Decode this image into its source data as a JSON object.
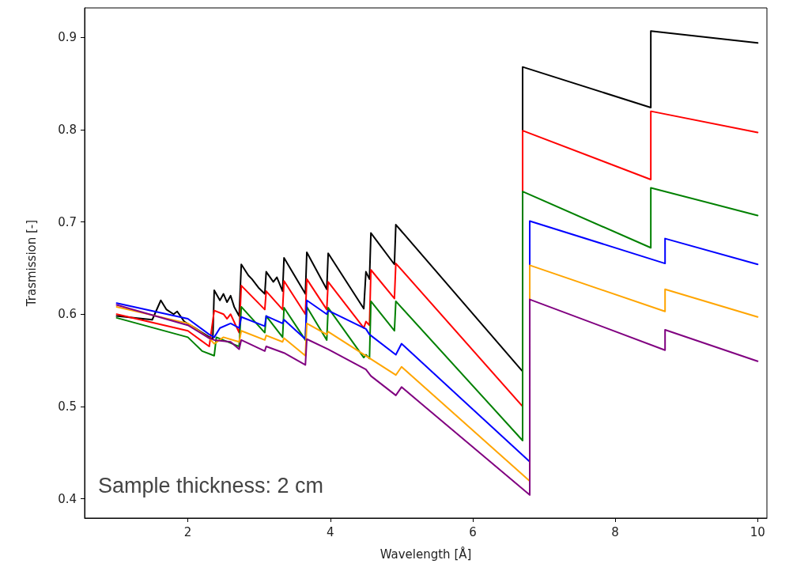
{
  "chart_data": {
    "type": "line",
    "xlabel": "Wavelength [Å]",
    "ylabel": "Trasmission [-]",
    "annotations": [
      "Sample thickness: 2 cm"
    ],
    "xlim": [
      0.55,
      10.13
    ],
    "ylim": [
      0.379,
      0.932
    ],
    "xticks": [
      2,
      4,
      6,
      8,
      10
    ],
    "yticks": [
      0.4,
      0.5,
      0.6,
      0.7,
      0.8,
      0.9
    ],
    "grid": false,
    "marker": "none",
    "line_style": "solid",
    "series": [
      {
        "color": "#000000",
        "x": [
          1,
          1.5,
          1.62,
          1.7,
          1.8,
          1.85,
          1.95,
          2.1,
          2.35,
          2.37,
          2.45,
          2.5,
          2.55,
          2.6,
          2.65,
          2.72,
          2.75,
          2.85,
          2.9,
          3.0,
          3.08,
          3.1,
          3.2,
          3.25,
          3.33,
          3.35,
          3.65,
          3.67,
          3.95,
          3.97,
          4.47,
          4.5,
          4.55,
          4.57,
          4.9,
          4.92,
          6.7,
          6.7,
          8.5,
          8.5,
          10
        ],
        "values": [
          0.598,
          0.594,
          0.615,
          0.605,
          0.6,
          0.603,
          0.592,
          0.585,
          0.573,
          0.626,
          0.615,
          0.622,
          0.613,
          0.62,
          0.608,
          0.598,
          0.654,
          0.642,
          0.638,
          0.628,
          0.622,
          0.646,
          0.635,
          0.64,
          0.625,
          0.661,
          0.622,
          0.667,
          0.627,
          0.666,
          0.606,
          0.646,
          0.638,
          0.688,
          0.654,
          0.697,
          0.538,
          0.868,
          0.824,
          0.907,
          0.894
        ]
      },
      {
        "color": "#ff0000",
        "x": [
          1,
          2,
          2.3,
          2.37,
          2.5,
          2.55,
          2.6,
          2.72,
          2.75,
          3.08,
          3.1,
          3.33,
          3.35,
          3.65,
          3.67,
          3.95,
          3.97,
          4.47,
          4.5,
          4.55,
          4.57,
          4.9,
          4.92,
          6.7,
          6.7,
          8.5,
          8.5,
          10
        ],
        "values": [
          0.6,
          0.582,
          0.565,
          0.604,
          0.6,
          0.595,
          0.6,
          0.58,
          0.631,
          0.605,
          0.625,
          0.605,
          0.636,
          0.6,
          0.638,
          0.605,
          0.635,
          0.585,
          0.592,
          0.588,
          0.648,
          0.617,
          0.655,
          0.5,
          0.799,
          0.746,
          0.82,
          0.797
        ]
      },
      {
        "color": "#008000",
        "x": [
          1,
          2,
          2.2,
          2.37,
          2.4,
          2.72,
          2.75,
          3.08,
          3.1,
          3.33,
          3.35,
          3.65,
          3.67,
          3.95,
          3.97,
          4.47,
          4.5,
          4.55,
          4.57,
          4.9,
          4.92,
          6.7,
          6.7,
          8.5,
          8.5,
          10
        ],
        "values": [
          0.596,
          0.575,
          0.56,
          0.555,
          0.575,
          0.565,
          0.608,
          0.58,
          0.598,
          0.575,
          0.607,
          0.572,
          0.608,
          0.572,
          0.607,
          0.553,
          0.556,
          0.552,
          0.614,
          0.582,
          0.614,
          0.463,
          0.733,
          0.672,
          0.737,
          0.707
        ]
      },
      {
        "color": "#0000ff",
        "x": [
          1,
          2,
          2.3,
          2.37,
          2.45,
          2.6,
          2.72,
          2.75,
          3.08,
          3.1,
          3.33,
          3.35,
          3.65,
          3.67,
          3.95,
          3.97,
          4.5,
          4.55,
          4.92,
          5.0,
          6.8,
          6.8,
          8.7,
          8.7,
          10
        ],
        "values": [
          0.612,
          0.595,
          0.578,
          0.575,
          0.585,
          0.59,
          0.585,
          0.597,
          0.587,
          0.598,
          0.59,
          0.594,
          0.573,
          0.615,
          0.6,
          0.604,
          0.584,
          0.578,
          0.556,
          0.568,
          0.44,
          0.701,
          0.655,
          0.682,
          0.654
        ]
      },
      {
        "color": "#ffa500",
        "x": [
          1,
          2,
          2.3,
          2.37,
          2.5,
          2.72,
          2.75,
          3.08,
          3.1,
          3.33,
          3.35,
          3.65,
          3.67,
          3.95,
          3.97,
          4.92,
          5.0,
          6.8,
          6.8,
          8.7,
          8.7,
          10
        ],
        "values": [
          0.608,
          0.59,
          0.574,
          0.568,
          0.575,
          0.57,
          0.582,
          0.572,
          0.577,
          0.57,
          0.574,
          0.555,
          0.59,
          0.578,
          0.581,
          0.534,
          0.543,
          0.419,
          0.653,
          0.603,
          0.627,
          0.597
        ]
      },
      {
        "color": "#800080",
        "x": [
          1,
          2,
          2.3,
          2.37,
          2.6,
          2.72,
          2.75,
          3.08,
          3.1,
          3.35,
          3.65,
          3.67,
          3.97,
          4.5,
          4.57,
          4.92,
          5.0,
          6.8,
          6.8,
          8.7,
          8.7,
          10
        ],
        "values": [
          0.61,
          0.588,
          0.574,
          0.572,
          0.57,
          0.562,
          0.572,
          0.56,
          0.565,
          0.558,
          0.545,
          0.573,
          0.562,
          0.54,
          0.533,
          0.512,
          0.521,
          0.404,
          0.616,
          0.561,
          0.583,
          0.549
        ]
      }
    ]
  }
}
